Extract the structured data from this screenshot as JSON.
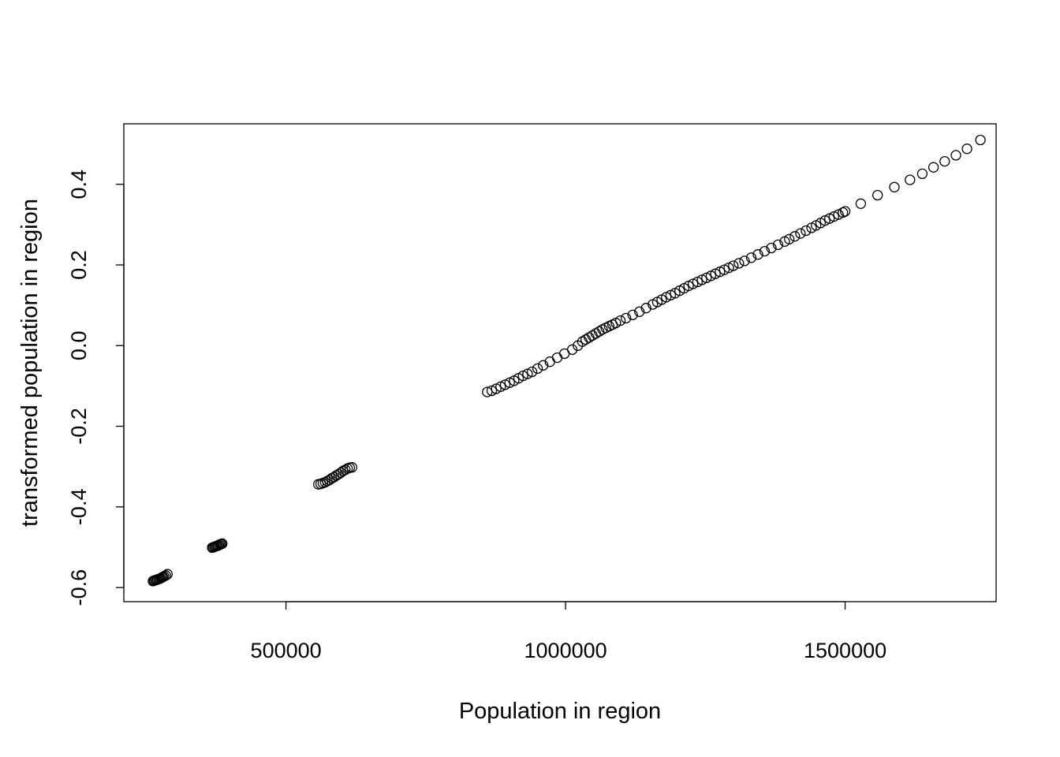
{
  "chart_data": {
    "type": "scatter",
    "title": "",
    "xlabel": "Population in region",
    "ylabel": "transformed population in region",
    "xlim": [
      210000,
      1770000
    ],
    "ylim": [
      -0.635,
      0.55
    ],
    "x_ticks": [
      500000,
      1000000,
      1500000
    ],
    "x_tick_labels": [
      "500000",
      "1000000",
      "1500000"
    ],
    "y_ticks": [
      -0.6,
      -0.4,
      -0.2,
      0.0,
      0.2,
      0.4
    ],
    "y_tick_labels": [
      "-0.6",
      "-0.4",
      "-0.2",
      "0.0",
      "0.2",
      "0.4"
    ],
    "grid": false,
    "point_style": "open-circle",
    "series": [
      {
        "points": [
          [
            262000,
            -0.584
          ],
          [
            264000,
            -0.583
          ],
          [
            266000,
            -0.582
          ],
          [
            268000,
            -0.581
          ],
          [
            270000,
            -0.58
          ],
          [
            272000,
            -0.579
          ],
          [
            274000,
            -0.578
          ],
          [
            276000,
            -0.577
          ],
          [
            278000,
            -0.575
          ],
          [
            280000,
            -0.574
          ],
          [
            282000,
            -0.572
          ],
          [
            285000,
            -0.57
          ],
          [
            288000,
            -0.567
          ],
          [
            368000,
            -0.501
          ],
          [
            370000,
            -0.5
          ],
          [
            372000,
            -0.499
          ],
          [
            374000,
            -0.498
          ],
          [
            376000,
            -0.497
          ],
          [
            378000,
            -0.496
          ],
          [
            380000,
            -0.495
          ],
          [
            382000,
            -0.493
          ],
          [
            384000,
            -0.492
          ],
          [
            386000,
            -0.491
          ],
          [
            558000,
            -0.344
          ],
          [
            562000,
            -0.343
          ],
          [
            566000,
            -0.341
          ],
          [
            570000,
            -0.339
          ],
          [
            574000,
            -0.336
          ],
          [
            578000,
            -0.333
          ],
          [
            582000,
            -0.329
          ],
          [
            586000,
            -0.326
          ],
          [
            590000,
            -0.322
          ],
          [
            594000,
            -0.319
          ],
          [
            598000,
            -0.315
          ],
          [
            602000,
            -0.311
          ],
          [
            606000,
            -0.308
          ],
          [
            610000,
            -0.305
          ],
          [
            614000,
            -0.303
          ],
          [
            618000,
            -0.302
          ],
          [
            860000,
            -0.115
          ],
          [
            868000,
            -0.112
          ],
          [
            876000,
            -0.107
          ],
          [
            884000,
            -0.102
          ],
          [
            892000,
            -0.097
          ],
          [
            900000,
            -0.092
          ],
          [
            908000,
            -0.087
          ],
          [
            916000,
            -0.081
          ],
          [
            924000,
            -0.075
          ],
          [
            932000,
            -0.07
          ],
          [
            940000,
            -0.065
          ],
          [
            950000,
            -0.057
          ],
          [
            960000,
            -0.049
          ],
          [
            972000,
            -0.04
          ],
          [
            985000,
            -0.03
          ],
          [
            998000,
            -0.02
          ],
          [
            1012000,
            -0.01
          ],
          [
            1022000,
            0.0
          ],
          [
            1030000,
            0.01
          ],
          [
            1036000,
            0.015
          ],
          [
            1042000,
            0.02
          ],
          [
            1048000,
            0.025
          ],
          [
            1054000,
            0.03
          ],
          [
            1060000,
            0.035
          ],
          [
            1066000,
            0.04
          ],
          [
            1072000,
            0.044
          ],
          [
            1078000,
            0.048
          ],
          [
            1084000,
            0.052
          ],
          [
            1090000,
            0.056
          ],
          [
            1098000,
            0.062
          ],
          [
            1108000,
            0.068
          ],
          [
            1120000,
            0.076
          ],
          [
            1132000,
            0.084
          ],
          [
            1144000,
            0.093
          ],
          [
            1156000,
            0.102
          ],
          [
            1164000,
            0.108
          ],
          [
            1172000,
            0.114
          ],
          [
            1180000,
            0.12
          ],
          [
            1188000,
            0.125
          ],
          [
            1196000,
            0.13
          ],
          [
            1204000,
            0.136
          ],
          [
            1212000,
            0.142
          ],
          [
            1220000,
            0.148
          ],
          [
            1228000,
            0.153
          ],
          [
            1236000,
            0.158
          ],
          [
            1244000,
            0.163
          ],
          [
            1252000,
            0.168
          ],
          [
            1260000,
            0.173
          ],
          [
            1268000,
            0.178
          ],
          [
            1276000,
            0.183
          ],
          [
            1284000,
            0.188
          ],
          [
            1292000,
            0.193
          ],
          [
            1300000,
            0.198
          ],
          [
            1310000,
            0.204
          ],
          [
            1320000,
            0.21
          ],
          [
            1332000,
            0.218
          ],
          [
            1344000,
            0.226
          ],
          [
            1356000,
            0.234
          ],
          [
            1368000,
            0.242
          ],
          [
            1380000,
            0.25
          ],
          [
            1392000,
            0.258
          ],
          [
            1400000,
            0.264
          ],
          [
            1410000,
            0.271
          ],
          [
            1420000,
            0.278
          ],
          [
            1430000,
            0.285
          ],
          [
            1440000,
            0.292
          ],
          [
            1448000,
            0.298
          ],
          [
            1456000,
            0.304
          ],
          [
            1464000,
            0.31
          ],
          [
            1472000,
            0.315
          ],
          [
            1480000,
            0.32
          ],
          [
            1488000,
            0.325
          ],
          [
            1496000,
            0.33
          ],
          [
            1500000,
            0.333
          ],
          [
            1528000,
            0.352
          ],
          [
            1558000,
            0.373
          ],
          [
            1588000,
            0.393
          ],
          [
            1616000,
            0.411
          ],
          [
            1638000,
            0.426
          ],
          [
            1658000,
            0.442
          ],
          [
            1678000,
            0.457
          ],
          [
            1698000,
            0.472
          ],
          [
            1718000,
            0.488
          ],
          [
            1742000,
            0.51
          ]
        ]
      }
    ]
  }
}
